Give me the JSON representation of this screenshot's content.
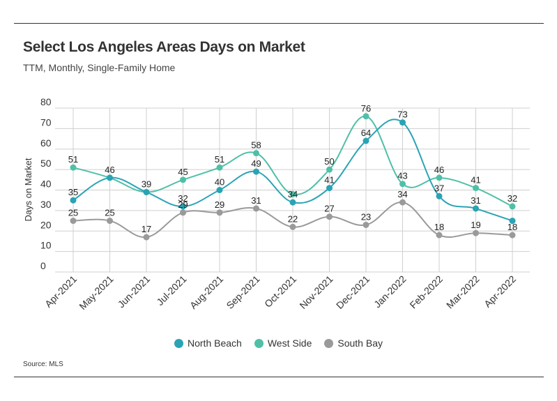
{
  "title": "Select Los Angeles Areas Days on Market",
  "subtitle": "TTM, Monthly, Single-Family Home",
  "source": "Source:  MLS",
  "chart_data": {
    "type": "line",
    "x": [
      "Apr-2021",
      "May-2021",
      "Jun-2021",
      "Jul-2021",
      "Aug-2021",
      "Sep-2021",
      "Oct-2021",
      "Nov-2021",
      "Dec-2021",
      "Jan-2022",
      "Feb-2022",
      "Mar-2022",
      "Apr-2022"
    ],
    "ylabel": "Days on Market",
    "ylim": [
      0,
      80
    ],
    "yticks": [
      "0",
      "10",
      "20",
      "30",
      "40",
      "50",
      "60",
      "70",
      "80"
    ],
    "grid": true,
    "legend_position": "bottom",
    "series": [
      {
        "name": "North Beach",
        "color": "#2aa3b5",
        "values": [
          35,
          46,
          39,
          32,
          40,
          49,
          34,
          41,
          64,
          73,
          37,
          31,
          25
        ],
        "labels": [
          "35",
          "46",
          "39",
          "32",
          "40",
          "49",
          "34",
          "41",
          "64",
          "73",
          "37",
          "31",
          ""
        ]
      },
      {
        "name": "West Side",
        "color": "#4fc0a7",
        "values": [
          51,
          46,
          39,
          45,
          51,
          58,
          38,
          50,
          76,
          43,
          46,
          41,
          32
        ],
        "labels": [
          "51",
          "",
          "",
          "45",
          "51",
          "58",
          "",
          "50",
          "76",
          "43",
          "46",
          "41",
          "32"
        ]
      },
      {
        "name": "South Bay",
        "color": "#9a9a9a",
        "values": [
          25,
          25,
          17,
          29,
          29,
          31,
          22,
          27,
          23,
          34,
          18,
          19,
          18
        ],
        "labels": [
          "25",
          "25",
          "17",
          "29",
          "29",
          "31",
          "22",
          "27",
          "23",
          "34",
          "18",
          "19",
          "18"
        ]
      }
    ]
  }
}
